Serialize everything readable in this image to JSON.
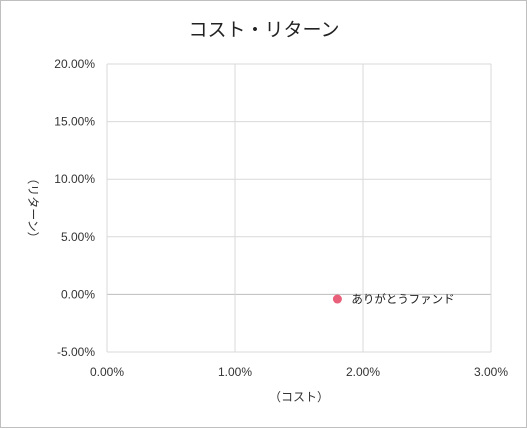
{
  "chart_data": {
    "type": "scatter",
    "title": "コスト・リターン",
    "xlabel": "（コスト）",
    "ylabel": "（リターン）",
    "xlim": [
      0,
      0.03
    ],
    "ylim": [
      -0.05,
      0.2
    ],
    "x_ticks": [
      0,
      0.01,
      0.02,
      0.03
    ],
    "y_ticks": [
      -0.05,
      0,
      0.05,
      0.1,
      0.15,
      0.2
    ],
    "x_tick_labels": [
      "0.00%",
      "1.00%",
      "2.00%",
      "3.00%"
    ],
    "y_tick_labels": [
      "-5.00%",
      "0.00%",
      "5.00%",
      "10.00%",
      "15.00%",
      "20.00%"
    ],
    "grid": true,
    "points": [
      {
        "label": "ありがとうファンド",
        "x": 0.018,
        "y": -0.004,
        "color": "#e8607a"
      }
    ]
  }
}
